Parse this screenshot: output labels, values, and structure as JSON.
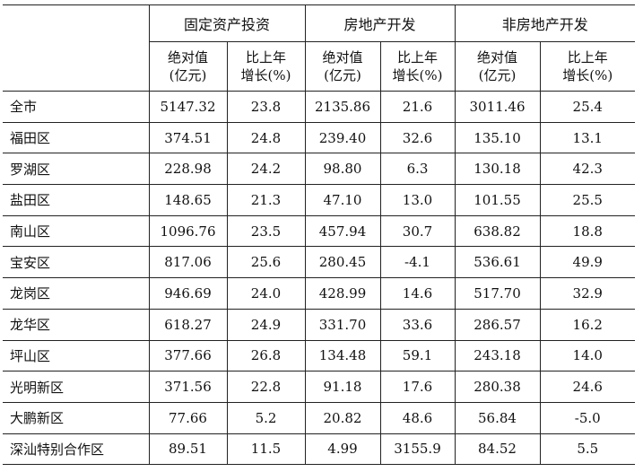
{
  "headers": {
    "groups": [
      "固定资产投资",
      "房地产开发",
      "非房地产开发"
    ],
    "sub": [
      [
        "绝对值",
        "(亿元)"
      ],
      [
        "比上年",
        "增长(%)"
      ],
      [
        "绝对值",
        "(亿元)"
      ],
      [
        "比上年",
        "增长(%)"
      ],
      [
        "绝对值",
        "(亿元)"
      ],
      [
        "比上年",
        "增长(%)"
      ]
    ]
  },
  "rows": [
    [
      "全市",
      "5147.32",
      "23.8",
      "2135.86",
      "21.6",
      "3011.46",
      "25.4"
    ],
    [
      "福田区",
      "374.51",
      "24.8",
      "239.40",
      "32.6",
      "135.10",
      "13.1"
    ],
    [
      "罗湖区",
      "228.98",
      "24.2",
      "98.80",
      "6.3",
      "130.18",
      "42.3"
    ],
    [
      "盐田区",
      "148.65",
      "21.3",
      "47.10",
      "13.0",
      "101.55",
      "25.5"
    ],
    [
      "南山区",
      "1096.76",
      "23.5",
      "457.94",
      "30.7",
      "638.82",
      "18.8"
    ],
    [
      "宝安区",
      "817.06",
      "25.6",
      "280.45",
      "-4.1",
      "536.61",
      "49.9"
    ],
    [
      "龙岗区",
      "946.69",
      "24.0",
      "428.99",
      "14.6",
      "517.70",
      "32.9"
    ],
    [
      "龙华区",
      "618.27",
      "24.9",
      "331.70",
      "33.6",
      "286.57",
      "16.2"
    ],
    [
      "坪山区",
      "377.66",
      "26.8",
      "134.48",
      "59.1",
      "243.18",
      "14.0"
    ],
    [
      "光明新区",
      "371.56",
      "22.8",
      "91.18",
      "17.6",
      "280.38",
      "24.6"
    ],
    [
      "大鹏新区",
      "77.66",
      "5.2",
      "20.82",
      "48.6",
      "56.84",
      "-5.0"
    ],
    [
      "深汕特别合作区",
      "89.51",
      "11.5",
      "4.99",
      "3155.9",
      "84.52",
      "5.5"
    ]
  ]
}
